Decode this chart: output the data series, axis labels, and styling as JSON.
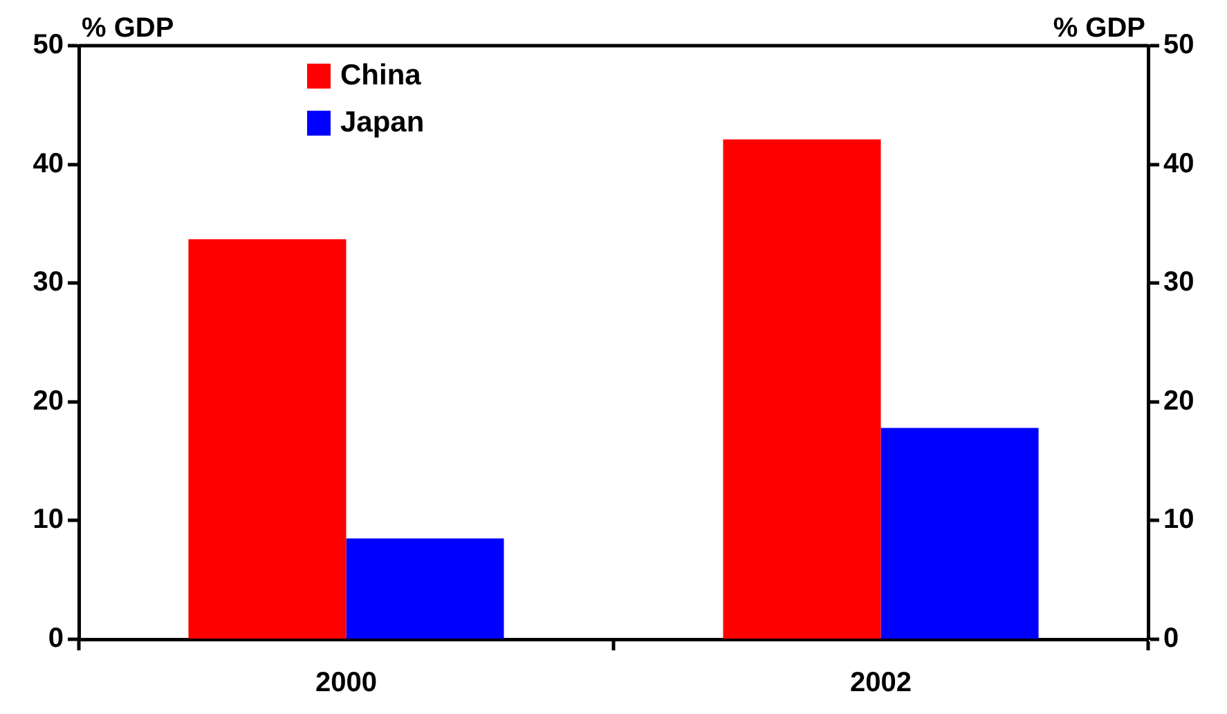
{
  "chart_data": {
    "type": "bar",
    "categories": [
      "2000",
      "2002"
    ],
    "series": [
      {
        "name": "China",
        "color": "#ff0000",
        "values": [
          33.7,
          42.1
        ]
      },
      {
        "name": "Japan",
        "color": "#0000ff",
        "values": [
          8.5,
          17.8
        ]
      }
    ],
    "ylabel": "% GDP",
    "y2label": "% GDP",
    "ylim": [
      0,
      50
    ],
    "yticks": [
      0,
      10,
      20,
      30,
      40,
      50
    ],
    "y2lim": [
      0,
      50
    ],
    "y2ticks": [
      0,
      10,
      20,
      30,
      40,
      50
    ],
    "grid": false,
    "legend": "top left"
  }
}
